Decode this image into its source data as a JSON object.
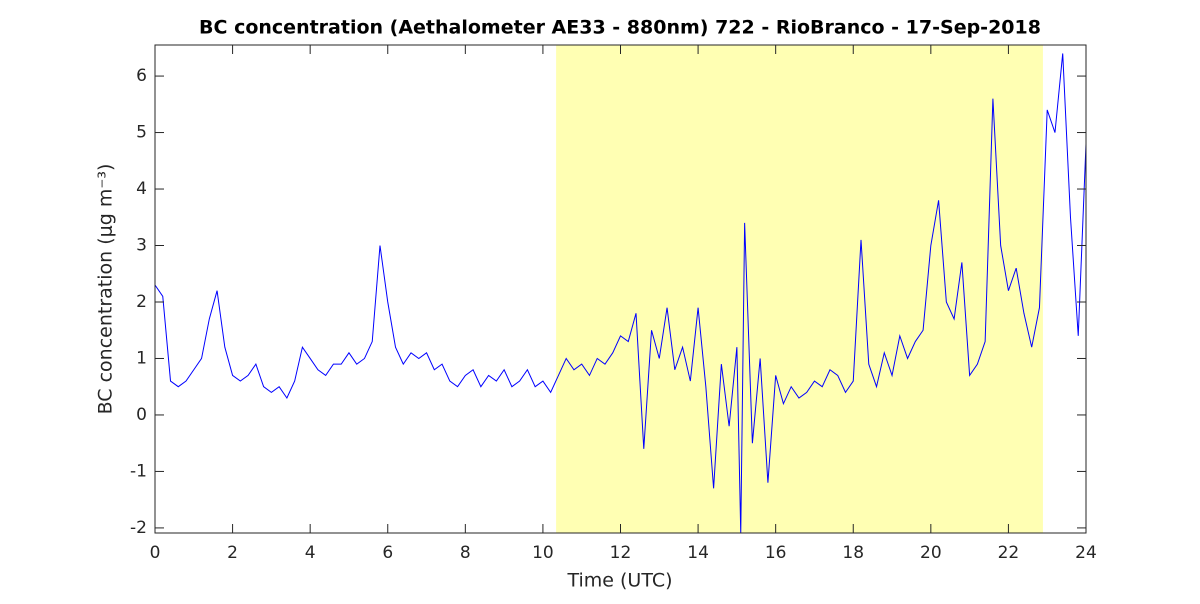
{
  "chart_data": {
    "type": "line",
    "title": "BC concentration (Aethalometer AE33 - 880nm) 722 - RioBranco - 17-Sep-2018",
    "xlabel": "Time (UTC)",
    "ylabel": "BC concentration (μg m⁻³)",
    "x": [
      0,
      0.2,
      0.4,
      0.6,
      0.8,
      1.0,
      1.2,
      1.4,
      1.6,
      1.8,
      2.0,
      2.2,
      2.4,
      2.6,
      2.8,
      3.0,
      3.2,
      3.4,
      3.6,
      3.8,
      4.0,
      4.2,
      4.4,
      4.6,
      4.8,
      5.0,
      5.2,
      5.4,
      5.6,
      5.8,
      6.0,
      6.2,
      6.4,
      6.6,
      6.8,
      7.0,
      7.2,
      7.4,
      7.6,
      7.8,
      8.0,
      8.2,
      8.4,
      8.6,
      8.8,
      9.0,
      9.2,
      9.4,
      9.6,
      9.8,
      10.0,
      10.2,
      10.4,
      10.6,
      10.8,
      11.0,
      11.2,
      11.4,
      11.6,
      11.8,
      12.0,
      12.2,
      12.4,
      12.6,
      12.8,
      13.0,
      13.2,
      13.4,
      13.6,
      13.8,
      14.0,
      14.2,
      14.4,
      14.6,
      14.8,
      15.0,
      15.1,
      15.2,
      15.4,
      15.6,
      15.8,
      16.0,
      16.2,
      16.4,
      16.6,
      16.8,
      17.0,
      17.2,
      17.4,
      17.6,
      17.8,
      18.0,
      18.2,
      18.4,
      18.6,
      18.8,
      19.0,
      19.2,
      19.4,
      19.6,
      19.8,
      20.0,
      20.2,
      20.4,
      20.6,
      20.8,
      21.0,
      21.2,
      21.4,
      21.6,
      21.8,
      22.0,
      22.2,
      22.4,
      22.6,
      22.8,
      23.0,
      23.2,
      23.4,
      23.6,
      23.8,
      24.0
    ],
    "series": [
      {
        "name": "BC",
        "color": "#0000ff",
        "values": [
          2.3,
          2.1,
          0.6,
          0.5,
          0.6,
          0.8,
          1.0,
          1.7,
          2.2,
          1.2,
          0.7,
          0.6,
          0.7,
          0.9,
          0.5,
          0.4,
          0.5,
          0.3,
          0.6,
          1.2,
          1.0,
          0.8,
          0.7,
          0.9,
          0.9,
          1.1,
          0.9,
          1.0,
          1.3,
          3.0,
          2.0,
          1.2,
          0.9,
          1.1,
          1.0,
          1.1,
          0.8,
          0.9,
          0.6,
          0.5,
          0.7,
          0.8,
          0.5,
          0.7,
          0.6,
          0.8,
          0.5,
          0.6,
          0.8,
          0.5,
          0.6,
          0.4,
          0.7,
          1.0,
          0.8,
          0.9,
          0.7,
          1.0,
          0.9,
          1.1,
          1.4,
          1.3,
          1.8,
          -0.6,
          1.5,
          1.0,
          1.9,
          0.8,
          1.2,
          0.6,
          1.9,
          0.5,
          -1.3,
          0.9,
          -0.2,
          1.2,
          -2.1,
          3.4,
          -0.5,
          1.0,
          -1.2,
          0.7,
          0.2,
          0.5,
          0.3,
          0.4,
          0.6,
          0.5,
          0.8,
          0.7,
          0.4,
          0.6,
          3.1,
          0.9,
          0.5,
          1.1,
          0.7,
          1.4,
          1.0,
          1.3,
          1.5,
          3.0,
          3.8,
          2.0,
          1.7,
          2.7,
          0.7,
          0.9,
          1.3,
          5.6,
          3.0,
          2.2,
          2.6,
          1.8,
          1.2,
          1.9,
          5.4,
          5.0,
          6.4,
          3.5,
          1.4,
          4.8
        ]
      }
    ],
    "shaded_region": [
      10.34,
      22.89
    ],
    "shaded_color": "#ffffb3",
    "xlim": [
      0,
      24
    ],
    "xticks": [
      0,
      2,
      4,
      6,
      8,
      10,
      12,
      14,
      16,
      18,
      20,
      22,
      24
    ],
    "ylim": [
      -2.09,
      6.55
    ],
    "yticks": [
      -2,
      -1,
      0,
      1,
      2,
      3,
      4,
      5,
      6
    ]
  }
}
